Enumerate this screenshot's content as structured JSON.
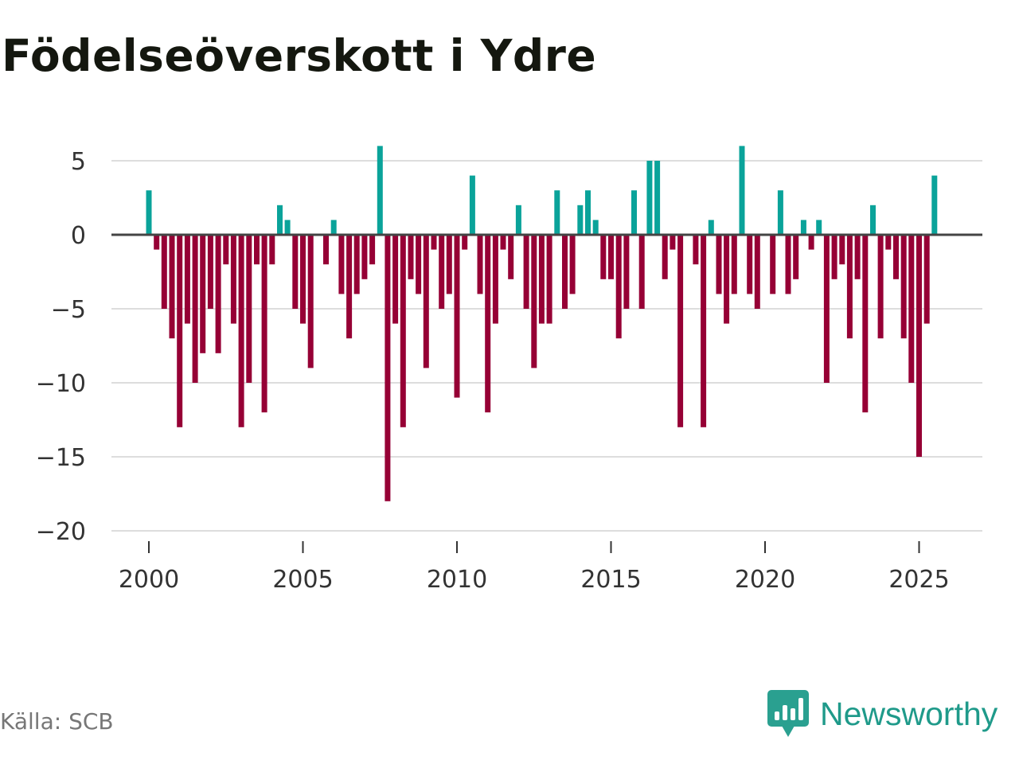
{
  "chart_data": {
    "type": "bar",
    "title": "Födelseöverskott i Ydre",
    "xlabel": "",
    "ylabel": "",
    "ylim": [
      -21,
      6
    ],
    "yticks": [
      5,
      0,
      -5,
      -10,
      -15,
      -20
    ],
    "ytick_labels": [
      "5",
      "0",
      "−5",
      "−10",
      "−15",
      "−20"
    ],
    "xticks": [
      2000,
      2005,
      2010,
      2015,
      2020,
      2025
    ],
    "xtick_labels": [
      "2000",
      "2005",
      "2010",
      "2015",
      "2020",
      "2025"
    ],
    "x_start": 2000.0,
    "x_step": 0.25,
    "positive_color": "#0aa39a",
    "negative_color": "#960035",
    "values": [
      3,
      -1,
      -5,
      -7,
      -13,
      -6,
      -10,
      -8,
      -5,
      -8,
      -2,
      -6,
      -13,
      -10,
      -2,
      -12,
      -2,
      2,
      1,
      -5,
      -6,
      -9,
      0,
      -2,
      1,
      -4,
      -7,
      -4,
      -3,
      -2,
      6,
      -18,
      -6,
      -13,
      -3,
      -4,
      -9,
      -1,
      -5,
      -4,
      -11,
      -1,
      4,
      -4,
      -12,
      -6,
      -1,
      -3,
      2,
      -5,
      -9,
      -6,
      -6,
      3,
      -5,
      -4,
      2,
      3,
      1,
      -3,
      -3,
      -7,
      -5,
      3,
      -5,
      5,
      5,
      -3,
      -1,
      -13,
      0,
      -2,
      -13,
      1,
      -4,
      -6,
      -4,
      6,
      -4,
      -5,
      0,
      -4,
      3,
      -4,
      -3,
      1,
      -1,
      1,
      -10,
      -3,
      -2,
      -7,
      -3,
      -12,
      2,
      -7,
      -1,
      -3,
      -7,
      -10,
      -15,
      -6,
      4
    ]
  },
  "source": "Källa: SCB",
  "brand": "Newsworthy",
  "brand_icon": "newsworthy-logo-icon",
  "colors": {
    "title": "#14170f",
    "grid": "#dddddd",
    "zero_line": "#444444",
    "brand": "#1f9a8a"
  }
}
